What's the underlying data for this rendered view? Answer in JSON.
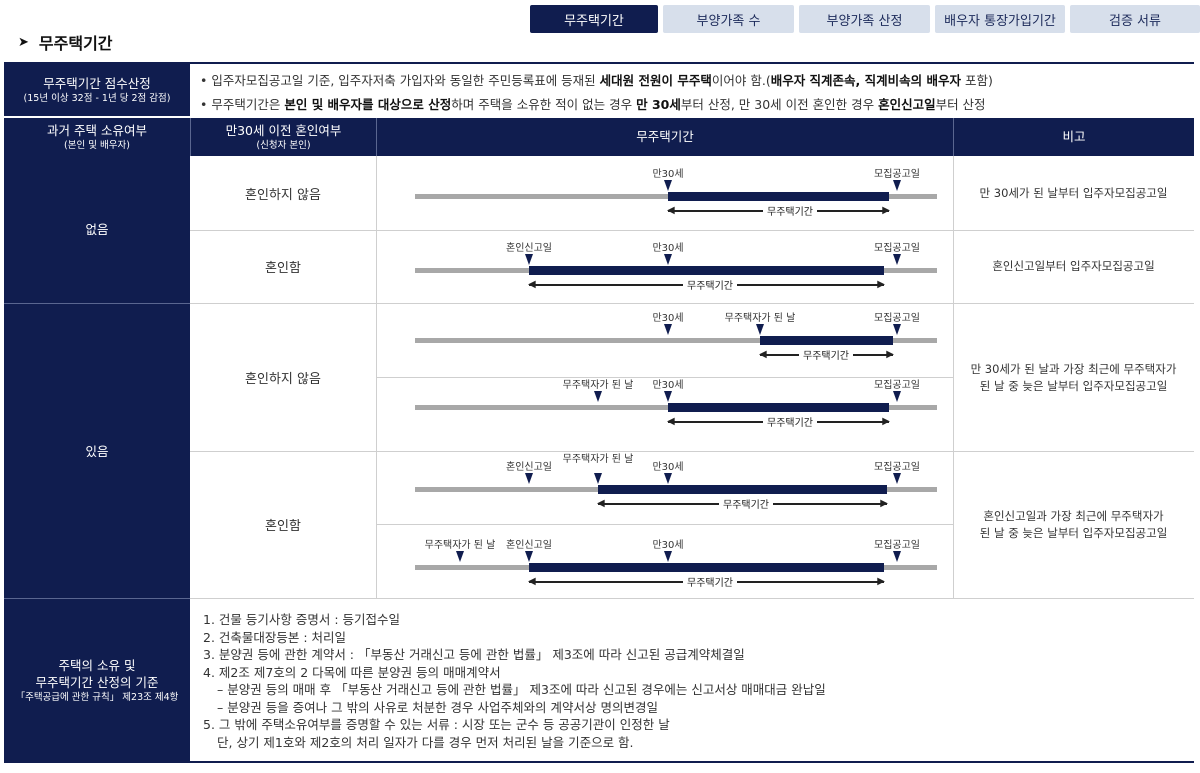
{
  "tabs": [
    "무주택기간",
    "부양가족 수",
    "부양가족 산정",
    "배우자 통장가입기간",
    "검증 서류"
  ],
  "section_title": "무주택기간",
  "intro_header": {
    "main": "무주택기간 점수산정",
    "sub": "(15년 이상 32점 - 1년 당 2점 감점)"
  },
  "intro_lines": [
    [
      "입주자모집공고일 기준, 입주자저축 가입자와 동일한 주민등록표에 등재된 ",
      "세대원 전원이 무주택",
      "이어야 함.(",
      "배우자 직계존속, 직계비속의 배우자",
      " 포함)"
    ],
    [
      "무주택기간은 ",
      "본인 및 배우자를 대상으로 산정",
      "하며 주택을 소유한 적이 없는 경우 ",
      "만 30세",
      "부터 산정, 만 30세 이전 혼인한 경우 ",
      "혼인신고일",
      "부터 산정"
    ]
  ],
  "columns": {
    "c1": {
      "main": "과거 주택 소유여부",
      "sub": "(본인 및 배우자)"
    },
    "c2": {
      "main": "만30세 이전 혼인여부",
      "sub": "(신청자 본인)"
    },
    "c3": "무주택기간",
    "c4": "비고"
  },
  "rows": {
    "none": "없음",
    "has": "있음",
    "not_married": "혼인하지 않음",
    "married": "혼인함",
    "not_married_b": "혼인하지 않음",
    "married_b": "혼인함"
  },
  "labels": {
    "age30": "만30세",
    "announce": "모집공고일",
    "marriage": "혼인신고일",
    "owner": "무주택자가 된 날",
    "period": "무주택기간"
  },
  "notes": {
    "n1": "만 30세가 된 날부터 입주자모집공고일",
    "n2": "혼인신고일부터 입주자모집공고일",
    "n3a": "만 30세가 된 날과 가장 최근에 무주택자가",
    "n3b": "된 날 중 늦은 날부터 입주자모집공고일",
    "n4a": "혼인신고일과 가장 최근에 무주택자가",
    "n4b": "된 날 중 늦은 날부터 입주자모집공고일"
  },
  "criteria_header": {
    "main1": "주택의 소유 및",
    "main2": "무주택기간 산정의 기준",
    "sub": "「주택공급에 관한 규칙」 제23조 제4항"
  },
  "documents": [
    "1. 건물 등기사항 증명서 : 등기접수일",
    "2. 건축물대장등본 : 처리일",
    "3. 분양권 등에 관한 계약서 : 「부동산 거래신고 등에 관한 법률」 제3조에 따라 신고된 공급계약체결일",
    "4. 제2조 제7호의 2 다목에 따른 분양권 등의 매매계약서",
    "– 분양권 등의 매매 후 「부동산 거래신고 등에 관한 법률」 제3조에 따라 신고된 경우에는 신고서상 매매대금 완납일",
    "– 분양권 등을 증여나 그 밖의 사유로 처분한 경우 사업주체와의 계약서상 명의변경일",
    "5. 그 밖에 주택소유여부를 증명할 수 있는 서류 : 시장 또는 군수 등 공공기관이 인정한 날",
    "단, 상기 제1호와 제2호의 처리 일자가 다를 경우 먼저 처리된 날을 기준으로 함."
  ],
  "colors": {
    "navy": "#101d4f",
    "tab_inactive": "#d7dfeb",
    "timeline_gray": "#a8a8a8"
  }
}
